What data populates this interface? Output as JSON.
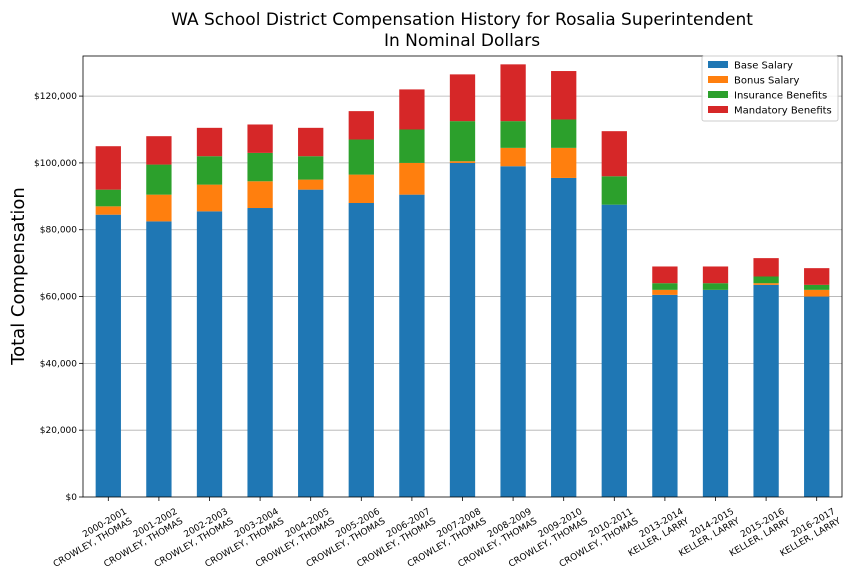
{
  "chart_data": {
    "type": "bar",
    "stacked": true,
    "title": [
      "WA School District Compensation History for Rosalia Superintendent",
      "In Nominal Dollars"
    ],
    "ylabel": "Total Compensation",
    "xlabel": "",
    "ylim": [
      0,
      132000
    ],
    "yticks": [
      0,
      20000,
      40000,
      60000,
      80000,
      100000,
      120000
    ],
    "ytick_labels": [
      "$0",
      "$20,000",
      "$40,000",
      "$60,000",
      "$80,000",
      "$100,000",
      "$120,000"
    ],
    "grid": "y",
    "legend_position": "top-right",
    "categories": [
      [
        "2000-2001",
        "CROWLEY, THOMAS"
      ],
      [
        "2001-2002",
        "CROWLEY, THOMAS"
      ],
      [
        "2002-2003",
        "CROWLEY, THOMAS"
      ],
      [
        "2003-2004",
        "CROWLEY, THOMAS"
      ],
      [
        "2004-2005",
        "CROWLEY, THOMAS"
      ],
      [
        "2005-2006",
        "CROWLEY, THOMAS"
      ],
      [
        "2006-2007",
        "CROWLEY, THOMAS"
      ],
      [
        "2007-2008",
        "CROWLEY, THOMAS"
      ],
      [
        "2008-2009",
        "CROWLEY, THOMAS"
      ],
      [
        "2009-2010",
        "CROWLEY, THOMAS"
      ],
      [
        "2010-2011",
        "CROWLEY, THOMAS"
      ],
      [
        "2013-2014",
        "KELLER, LARRY"
      ],
      [
        "2014-2015",
        "KELLER, LARRY"
      ],
      [
        "2015-2016",
        "KELLER, LARRY"
      ],
      [
        "2016-2017",
        "KELLER, LARRY"
      ]
    ],
    "series": [
      {
        "name": "Base Salary",
        "color": "#1f77b4",
        "values": [
          84500,
          82500,
          85500,
          86500,
          92000,
          88000,
          90500,
          100000,
          99000,
          95500,
          87500,
          60500,
          62000,
          63500,
          60000
        ]
      },
      {
        "name": "Bonus Salary",
        "color": "#ff7f0e",
        "values": [
          2500,
          8000,
          8000,
          8000,
          3000,
          8500,
          9500,
          500,
          5500,
          9000,
          0,
          1500,
          0,
          500,
          2000
        ]
      },
      {
        "name": "Insurance Benefits",
        "color": "#2ca02c",
        "values": [
          5000,
          9000,
          8500,
          8500,
          7000,
          10500,
          10000,
          12000,
          8000,
          8500,
          8500,
          2000,
          2000,
          2000,
          1500
        ]
      },
      {
        "name": "Mandatory Benefits",
        "color": "#d62728",
        "values": [
          13000,
          8500,
          8500,
          8500,
          8500,
          8500,
          12000,
          14000,
          17000,
          14500,
          13500,
          5000,
          5000,
          5500,
          5000
        ]
      }
    ]
  }
}
